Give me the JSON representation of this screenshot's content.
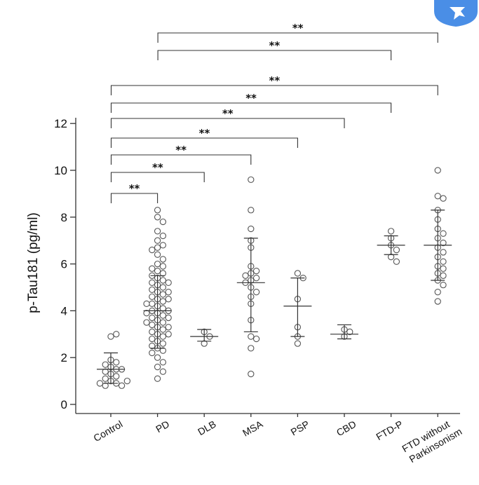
{
  "chart_data": {
    "type": "scatter",
    "subtype": "dot-plot with mean and SD bars",
    "ylabel": "p-Tau181 (pg/ml)",
    "xlabel": "",
    "ylim": [
      0,
      12.6
    ],
    "yticks": [
      0,
      2,
      4,
      6,
      8,
      10,
      12
    ],
    "grid": false,
    "legend": "none",
    "categories": [
      "Control",
      "PD",
      "DLB",
      "MSA",
      "PSP",
      "CBD",
      "FTD-P",
      "FTD without Parkinsonism"
    ],
    "groups": [
      {
        "name": "Control",
        "mean": 1.5,
        "sd_low": 0.9,
        "sd_high": 2.2,
        "points": [
          2.9,
          3.0,
          1.9,
          1.8,
          1.7,
          1.6,
          1.5,
          1.5,
          1.4,
          1.3,
          1.2,
          1.1,
          1.0,
          0.9,
          0.8,
          0.8,
          0.9,
          1.0
        ]
      },
      {
        "name": "PD",
        "mean": 4.0,
        "sd_low": 2.4,
        "sd_high": 5.5,
        "points": [
          8.3,
          8.0,
          7.8,
          7.4,
          7.2,
          7.0,
          6.8,
          6.7,
          6.6,
          6.4,
          6.2,
          6.0,
          5.9,
          5.8,
          5.7,
          5.6,
          5.5,
          5.4,
          5.3,
          5.2,
          5.2,
          5.1,
          5.0,
          4.9,
          4.8,
          4.8,
          4.7,
          4.6,
          4.5,
          4.5,
          4.4,
          4.3,
          4.3,
          4.2,
          4.1,
          4.0,
          4.0,
          3.9,
          3.9,
          3.8,
          3.7,
          3.7,
          3.6,
          3.5,
          3.5,
          3.4,
          3.3,
          3.3,
          3.2,
          3.1,
          3.0,
          3.0,
          2.9,
          2.8,
          2.7,
          2.6,
          2.5,
          2.4,
          2.3,
          2.2,
          2.0,
          1.8,
          1.6,
          1.4,
          1.1
        ]
      },
      {
        "name": "DLB",
        "mean": 2.9,
        "sd_low": 2.7,
        "sd_high": 3.2,
        "points": [
          3.1,
          2.9,
          2.6
        ]
      },
      {
        "name": "MSA",
        "mean": 5.2,
        "sd_low": 3.1,
        "sd_high": 7.1,
        "points": [
          9.6,
          8.3,
          7.5,
          7.0,
          6.7,
          5.9,
          5.7,
          5.6,
          5.5,
          5.4,
          5.3,
          5.2,
          5.0,
          4.8,
          4.6,
          4.3,
          3.6,
          2.9,
          2.8,
          2.4,
          1.3
        ]
      },
      {
        "name": "PSP",
        "mean": 4.2,
        "sd_low": 2.9,
        "sd_high": 5.4,
        "points": [
          5.6,
          5.4,
          4.5,
          3.3,
          2.9,
          2.6
        ]
      },
      {
        "name": "CBD",
        "mean": 3.0,
        "sd_low": 2.8,
        "sd_high": 3.4,
        "points": [
          3.2,
          3.1,
          2.9
        ]
      },
      {
        "name": "FTD-P",
        "mean": 6.8,
        "sd_low": 6.4,
        "sd_high": 7.2,
        "points": [
          7.4,
          7.1,
          6.8,
          6.6,
          6.3,
          6.1
        ]
      },
      {
        "name": "FTD without Parkinsonism",
        "mean": 6.8,
        "sd_low": 5.3,
        "sd_high": 8.3,
        "points": [
          10.0,
          8.9,
          8.8,
          8.3,
          7.9,
          7.5,
          7.3,
          7.1,
          6.9,
          6.7,
          6.5,
          6.3,
          6.1,
          5.9,
          5.8,
          5.6,
          5.5,
          5.3,
          5.1,
          4.8,
          4.4
        ]
      }
    ],
    "comparisons": [
      {
        "from": "Control",
        "to": "PD",
        "label": "**"
      },
      {
        "from": "Control",
        "to": "DLB",
        "label": "**"
      },
      {
        "from": "Control",
        "to": "MSA",
        "label": "**"
      },
      {
        "from": "Control",
        "to": "PSP",
        "label": "**"
      },
      {
        "from": "Control",
        "to": "CBD",
        "label": "**"
      },
      {
        "from": "Control",
        "to": "FTD-P",
        "label": "**"
      },
      {
        "from": "Control",
        "to": "FTD without Parkinsonism",
        "label": "**"
      },
      {
        "from": "PD",
        "to": "FTD-P",
        "label": "**"
      },
      {
        "from": "PD",
        "to": "FTD without Parkinsonism",
        "label": "**"
      }
    ]
  },
  "colors": {
    "axis": "#333333",
    "point_stroke": "#555555",
    "point_fill": "#ffffff",
    "badge": "#4a8ee6"
  },
  "icons": {
    "badge": "bird-logo-icon"
  }
}
